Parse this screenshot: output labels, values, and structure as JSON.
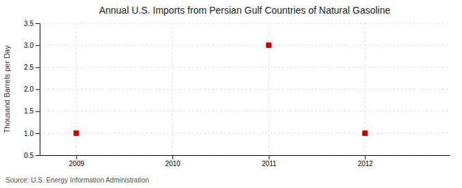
{
  "chart_data": {
    "type": "scatter",
    "title": "Annual U.S. Imports from Persian Gulf Countries of Natural Gasoline",
    "y_label": "Thousand Barrels per Day",
    "annotations": [
      "Source: U.S. Energy Information Administration"
    ],
    "x": [
      2009,
      2011,
      2012
    ],
    "values": [
      1.0,
      3.0,
      1.0
    ],
    "color": "#CC0000",
    "marker": "square",
    "xlim": [
      2008.62,
      2012.88
    ],
    "xticks": [
      2009,
      2010,
      2011,
      2012
    ],
    "ylim": [
      0.5,
      3.5
    ],
    "yticks": [
      0.5,
      {
        "value": 1.0,
        "label": "1.0"
      },
      1.5,
      {
        "value": 2.0,
        "label": "2.0"
      },
      2.5,
      {
        "value": 3.0,
        "label": "3.0"
      },
      3.5
    ],
    "grid": true
  }
}
